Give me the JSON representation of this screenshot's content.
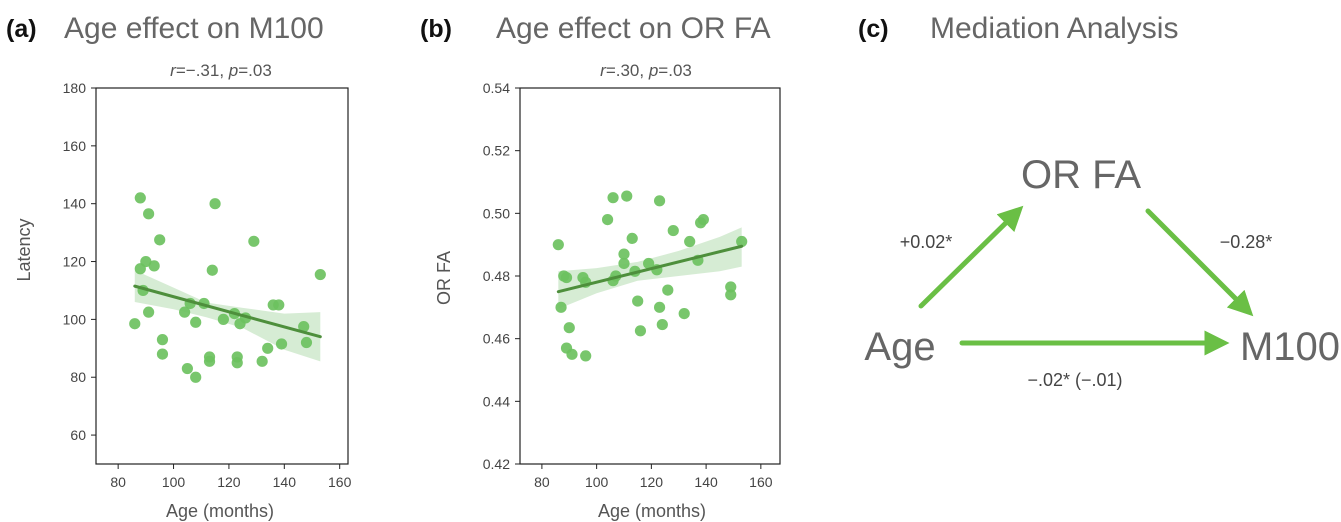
{
  "panels": [
    {
      "letter": "(a)",
      "title": "Age effect on M100"
    },
    {
      "letter": "(b)",
      "title": "Age effect on OR FA"
    },
    {
      "letter": "(c)",
      "title": "Mediation Analysis"
    }
  ],
  "chart_data": [
    {
      "type": "scatter",
      "stat": {
        "r": "r",
        "r_value": "=−.31, ",
        "p": "p",
        "p_value": "=.03"
      },
      "xlabel": "Age (months)",
      "ylabel": "Latency",
      "xlim": [
        72,
        163
      ],
      "ylim": [
        50,
        180
      ],
      "xticks": [
        80,
        100,
        120,
        140,
        160
      ],
      "yticks": [
        60,
        80,
        100,
        120,
        140,
        160,
        180
      ],
      "points_color": "#6cc15f",
      "fit_color": "#4e8f3c",
      "band_color": "#cfe9cc",
      "fit": {
        "x": [
          86,
          153
        ],
        "y": [
          111.5,
          94
        ]
      },
      "band_upper": [
        [
          86,
          117
        ],
        [
          100,
          111
        ],
        [
          112,
          105.8
        ],
        [
          125,
          104
        ],
        [
          140,
          102
        ],
        [
          153,
          102.5
        ]
      ],
      "band_lower": [
        [
          86,
          106
        ],
        [
          100,
          103.5
        ],
        [
          112,
          100.7
        ],
        [
          125,
          97
        ],
        [
          140,
          89.5
        ],
        [
          153,
          85.5
        ]
      ],
      "points": [
        [
          88,
          142
        ],
        [
          91,
          136.5
        ],
        [
          88,
          117.5
        ],
        [
          90,
          120
        ],
        [
          93,
          118.5
        ],
        [
          95,
          127.5
        ],
        [
          89,
          110
        ],
        [
          91,
          102.5
        ],
        [
          86,
          98.5
        ],
        [
          96,
          93
        ],
        [
          96,
          88
        ],
        [
          104,
          102.5
        ],
        [
          106,
          105.5
        ],
        [
          108,
          99
        ],
        [
          105,
          83
        ],
        [
          108,
          80
        ],
        [
          111,
          105.5
        ],
        [
          113,
          87
        ],
        [
          113,
          85.5
        ],
        [
          114,
          117
        ],
        [
          115,
          140
        ],
        [
          118,
          100
        ],
        [
          122,
          102
        ],
        [
          123,
          87
        ],
        [
          123,
          85
        ],
        [
          124,
          98.5
        ],
        [
          126,
          100.5
        ],
        [
          129,
          127
        ],
        [
          132,
          85.5
        ],
        [
          134,
          90
        ],
        [
          136,
          105
        ],
        [
          138,
          105
        ],
        [
          139,
          91.5
        ],
        [
          147,
          97.5
        ],
        [
          148,
          92
        ],
        [
          153,
          115.5
        ]
      ]
    },
    {
      "type": "scatter",
      "stat": {
        "r": "r",
        "r_value": "=.30, ",
        "p": "p",
        "p_value": "=.03"
      },
      "xlabel": "Age (months)",
      "ylabel": "OR FA",
      "xlim": [
        72,
        167
      ],
      "ylim": [
        0.42,
        0.54
      ],
      "xticks": [
        80,
        100,
        120,
        140,
        160
      ],
      "yticks": [
        "0.42",
        "0.44",
        "0.46",
        "0.48",
        "0.50",
        "0.52",
        "0.54"
      ],
      "points_color": "#6cc15f",
      "fit_color": "#4e8f3c",
      "band_color": "#cfe9cc",
      "fit": {
        "x": [
          86,
          153
        ],
        "y": [
          0.475,
          0.4895
        ]
      },
      "band_upper": [
        [
          86,
          0.4815
        ],
        [
          100,
          0.4825
        ],
        [
          115,
          0.4845
        ],
        [
          130,
          0.488
        ],
        [
          145,
          0.4925
        ],
        [
          153,
          0.4955
        ]
      ],
      "band_lower": [
        [
          86,
          0.4695
        ],
        [
          100,
          0.4745
        ],
        [
          115,
          0.4785
        ],
        [
          130,
          0.48
        ],
        [
          145,
          0.4815
        ],
        [
          153,
          0.483
        ]
      ],
      "points": [
        [
          86,
          0.49
        ],
        [
          88,
          0.48
        ],
        [
          89,
          0.4795
        ],
        [
          87,
          0.47
        ],
        [
          90,
          0.4635
        ],
        [
          89,
          0.457
        ],
        [
          91,
          0.455
        ],
        [
          95,
          0.4795
        ],
        [
          96,
          0.478
        ],
        [
          96,
          0.4545
        ],
        [
          104,
          0.498
        ],
        [
          106,
          0.4785
        ],
        [
          107,
          0.48
        ],
        [
          106,
          0.505
        ],
        [
          110,
          0.487
        ],
        [
          110,
          0.484
        ],
        [
          111,
          0.5055
        ],
        [
          113,
          0.492
        ],
        [
          114,
          0.4815
        ],
        [
          115,
          0.472
        ],
        [
          116,
          0.4625
        ],
        [
          119,
          0.484
        ],
        [
          122,
          0.482
        ],
        [
          123,
          0.504
        ],
        [
          123,
          0.47
        ],
        [
          124,
          0.4645
        ],
        [
          126,
          0.4755
        ],
        [
          128,
          0.4945
        ],
        [
          132,
          0.468
        ],
        [
          134,
          0.491
        ],
        [
          137,
          0.485
        ],
        [
          138,
          0.497
        ],
        [
          139,
          0.498
        ],
        [
          149,
          0.4765
        ],
        [
          149,
          0.474
        ],
        [
          153,
          0.491
        ]
      ]
    }
  ],
  "mediation": {
    "nodes": {
      "mediator": "OR FA",
      "predictor": "Age",
      "outcome": "M100"
    },
    "paths": {
      "a": "+0.02*",
      "b": "−0.28*",
      "c": "−.02* (−.01)"
    },
    "arrow_color": "#6abf45"
  }
}
